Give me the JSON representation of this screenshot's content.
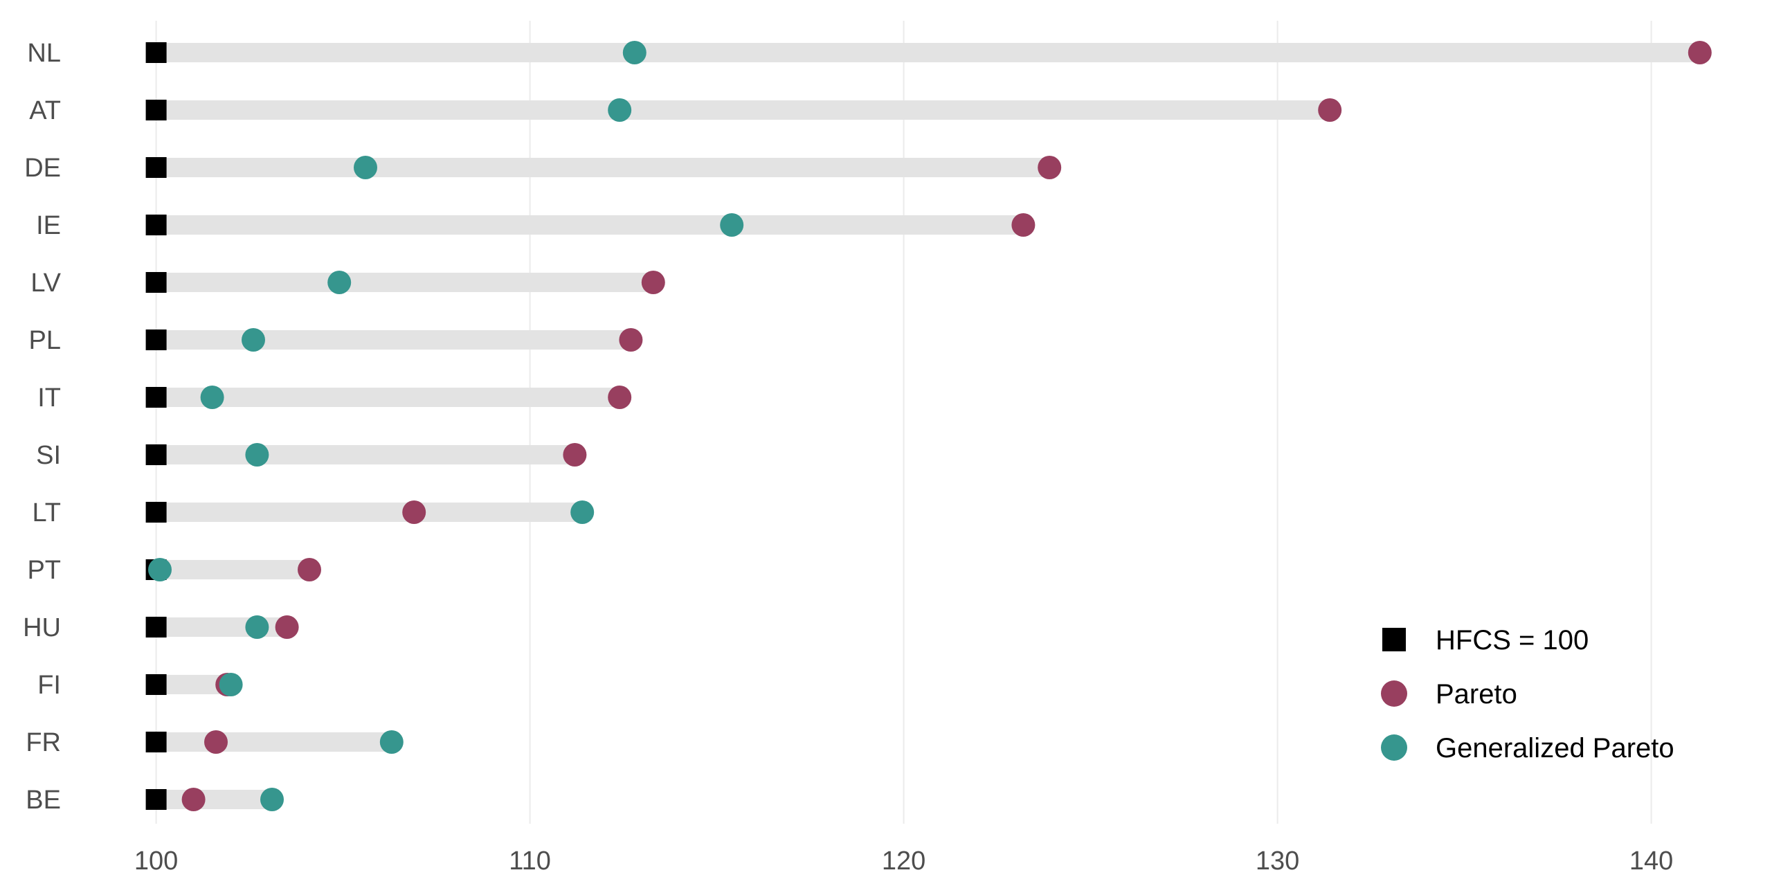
{
  "chart_data": {
    "type": "dot",
    "title": "",
    "xlabel": "",
    "ylabel": "",
    "xlim": [
      98,
      142
    ],
    "xticks": [
      "100",
      "110",
      "120",
      "130",
      "140"
    ],
    "xtick_values": [
      100,
      110,
      120,
      130,
      140
    ],
    "grid": "vertical major gridlines",
    "legend_position": "bottom-right",
    "categories": [
      "NL",
      "AT",
      "DE",
      "IE",
      "LV",
      "PL",
      "IT",
      "SI",
      "LT",
      "PT",
      "HU",
      "FI",
      "FR",
      "BE"
    ],
    "series": [
      {
        "name": "HFCS = 100",
        "marker": "square",
        "color": "#000000",
        "values": [
          100,
          100,
          100,
          100,
          100,
          100,
          100,
          100,
          100,
          100,
          100,
          100,
          100,
          100
        ]
      },
      {
        "name": "Pareto",
        "marker": "circle",
        "color": "#983F5F",
        "values": [
          141.3,
          131.4,
          123.9,
          123.2,
          113.3,
          112.7,
          112.4,
          111.2,
          106.9,
          104.1,
          103.5,
          101.9,
          101.6,
          101.0
        ]
      },
      {
        "name": "Generalized Pareto",
        "marker": "circle",
        "color": "#36968E",
        "values": [
          112.8,
          112.4,
          105.6,
          115.4,
          104.9,
          102.6,
          101.5,
          102.7,
          111.4,
          100.1,
          102.7,
          102.0,
          106.3,
          103.1
        ]
      }
    ],
    "range_bar_color": "#E3E3E3",
    "gridline_color": "#EBEBEB"
  }
}
